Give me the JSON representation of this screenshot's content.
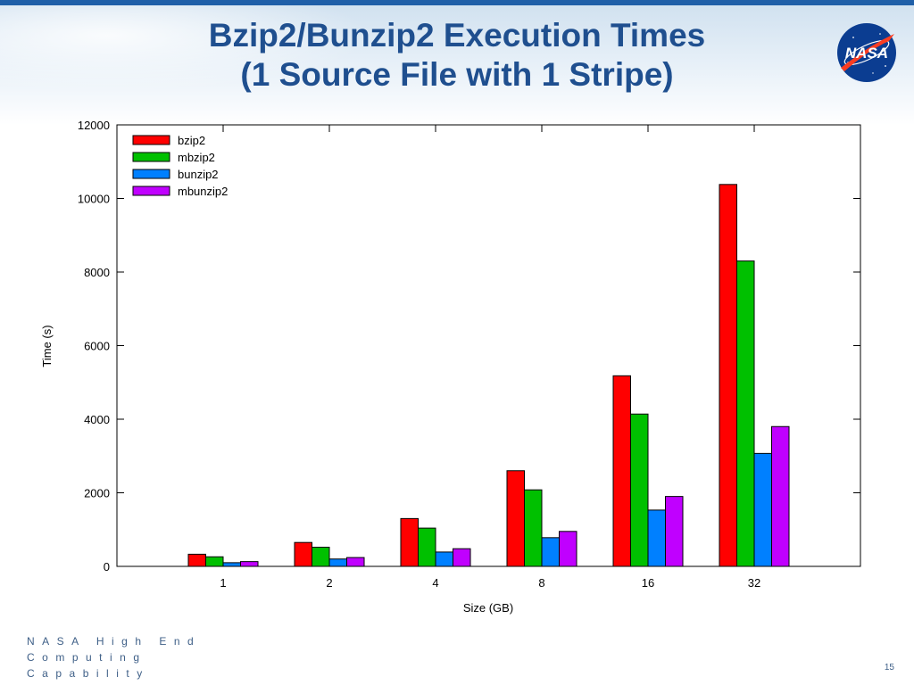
{
  "slide": {
    "title_line1": "Bzip2/Bunzip2 Execution Times",
    "title_line2": "(1 Source File with 1 Stripe)",
    "logo_text": "NASA",
    "footer_line1": "NASA High End",
    "footer_line2": "Computing",
    "footer_line3": "Capability",
    "page_number": "15",
    "colors": {
      "title": "#1f4f8f",
      "header_band": "#cfe0ef",
      "footer_text": "#3e5f87",
      "logo_blue": "#0b3d91",
      "logo_red": "#fc3d21"
    }
  },
  "chart_data": {
    "type": "bar",
    "title": "",
    "xlabel": "Size (GB)",
    "ylabel": "Time (s)",
    "categories": [
      "1",
      "2",
      "4",
      "8",
      "16",
      "32"
    ],
    "ylim": [
      0,
      12000
    ],
    "yticks": [
      0,
      2000,
      4000,
      6000,
      8000,
      10000,
      12000
    ],
    "ytick_labels": [
      "0",
      "2000",
      "4000",
      "6000",
      "8000",
      "10000",
      "12000"
    ],
    "grid": false,
    "legend_position": "top-left",
    "series": [
      {
        "name": "bzip2",
        "color": "#ff0000",
        "values": [
          330,
          650,
          1300,
          2600,
          5180,
          10380
        ]
      },
      {
        "name": "mbzip2",
        "color": "#00c000",
        "values": [
          260,
          520,
          1040,
          2080,
          4140,
          8300
        ]
      },
      {
        "name": "bunzip2",
        "color": "#0080ff",
        "values": [
          100,
          200,
          390,
          780,
          1530,
          3070
        ]
      },
      {
        "name": "mbunzip2",
        "color": "#c000ff",
        "values": [
          130,
          240,
          480,
          950,
          1900,
          3800
        ]
      }
    ]
  }
}
